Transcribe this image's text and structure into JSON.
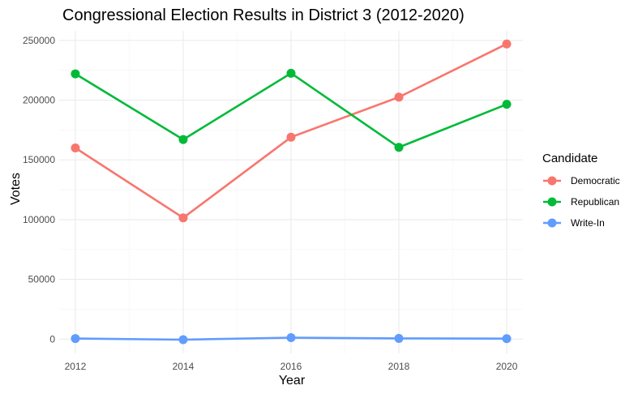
{
  "chart_data": {
    "type": "line",
    "title": "Congressional Election Results in District 3 (2012-2020)",
    "xlabel": "Year",
    "ylabel": "Votes",
    "x": [
      2012,
      2014,
      2016,
      2018,
      2020
    ],
    "x_ticks": [
      "2012",
      "2014",
      "2016",
      "2018",
      "2020"
    ],
    "y_ticks": [
      "0",
      "50000",
      "100000",
      "150000",
      "200000",
      "250000"
    ],
    "xlim": [
      2011.7,
      2020.3
    ],
    "ylim": [
      -12000,
      258000
    ],
    "grid": true,
    "legend": {
      "title": "Candidate",
      "position": "right"
    },
    "series": [
      {
        "name": "Democratic",
        "color": "#F8766D",
        "values": [
          160000,
          101500,
          169000,
          202500,
          247000
        ]
      },
      {
        "name": "Republican",
        "color": "#00BA38",
        "values": [
          222000,
          167000,
          222500,
          160500,
          196500
        ]
      },
      {
        "name": "Write-In",
        "color": "#619CFF",
        "values": [
          500,
          -500,
          1200,
          600,
          400
        ]
      }
    ]
  }
}
